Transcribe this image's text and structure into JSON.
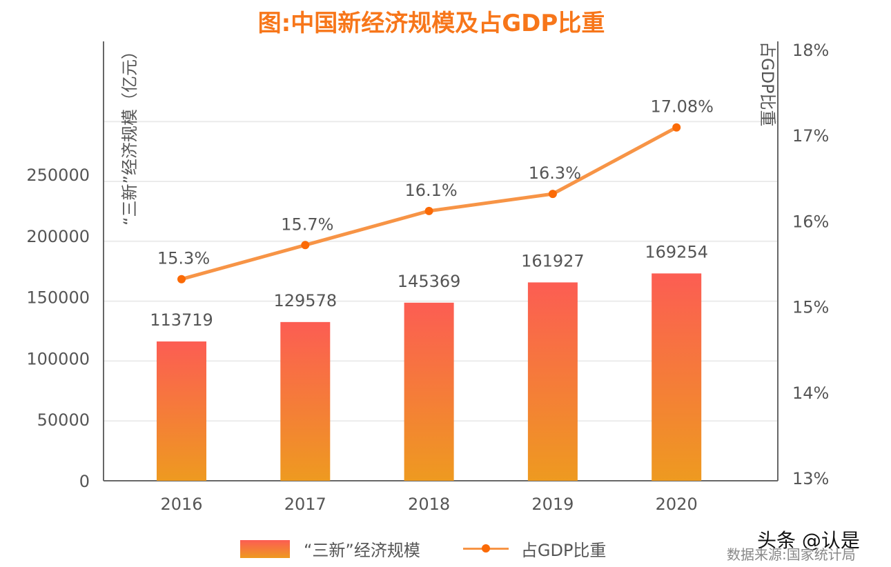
{
  "chart_data": {
    "type": "bar+line",
    "title": "图:中国新经济规模及占GDP比重",
    "categories": [
      "2016",
      "2017",
      "2018",
      "2019",
      "2020"
    ],
    "series": [
      {
        "name": "“三新”经济规模",
        "type": "bar",
        "axis": "left",
        "values": [
          113719,
          129578,
          145369,
          161927,
          169254
        ],
        "labels": [
          "113719",
          "129578",
          "145369",
          "161927",
          "169254"
        ]
      },
      {
        "name": "占GDP比重",
        "type": "line",
        "axis": "right",
        "values": [
          15.3,
          15.7,
          16.1,
          16.3,
          17.08
        ],
        "labels": [
          "15.3%",
          "15.7%",
          "16.1%",
          "16.3%",
          "17.08%"
        ]
      }
    ],
    "ylabel_left": "“三新”经济规模（亿元）",
    "ylabel_right": "占GDP比重",
    "yticks_left": [
      "0",
      "50000",
      "100000",
      "150000",
      "200000",
      "250000"
    ],
    "yticks_right": [
      "13%",
      "14%",
      "15%",
      "16%",
      "17%",
      "18%"
    ],
    "ylim_left": [
      0,
      250000
    ],
    "ylim_right": [
      13,
      18
    ],
    "grid": true,
    "legend": "bottom",
    "colors": {
      "bar_top": "#fc5d53",
      "bar_bottom": "#ee9a20",
      "line": "#f79446",
      "marker": "#fb6a06",
      "title": "#f7761a"
    }
  },
  "source": "数据来源:国家统计局",
  "watermark": "头条 @认是"
}
